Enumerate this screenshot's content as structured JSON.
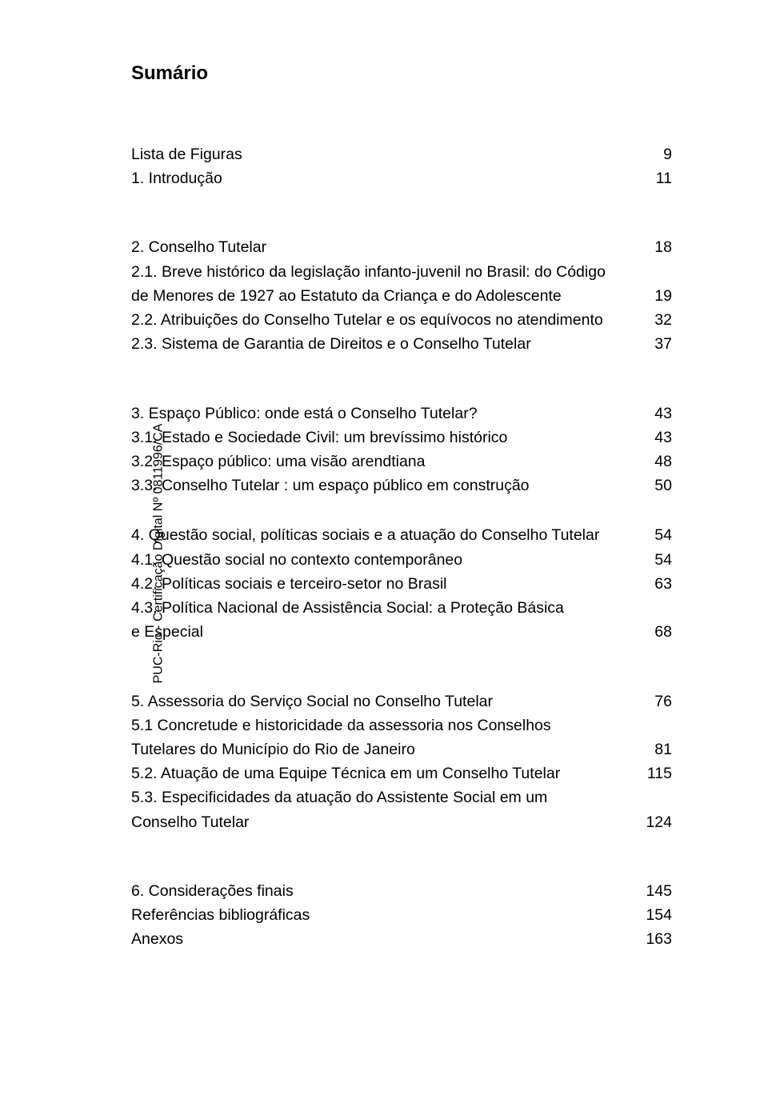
{
  "sidetext": "PUC-Rio - Certificação Digital Nº 0811996/CA",
  "title": "Sumário",
  "entries": [
    {
      "label": "Lista de Figuras",
      "page": "9"
    },
    {
      "label": "1. Introdução",
      "page": "11"
    },
    {
      "label": "2. Conselho Tutelar",
      "page": "18"
    },
    {
      "label": "2.1. Breve histórico da legislação infanto-juvenil no Brasil: do Código",
      "label2": "de Menores de 1927 ao Estatuto da Criança e do Adolescente",
      "page": "19"
    },
    {
      "label": "2.2. Atribuições do Conselho Tutelar e os equívocos no atendimento",
      "page": "32"
    },
    {
      "label": "2.3. Sistema de Garantia de Direitos e o Conselho Tutelar",
      "page": "37"
    },
    {
      "label": "3. Espaço Público: onde está o Conselho Tutelar?",
      "page": "43"
    },
    {
      "label": "3.1. Estado e Sociedade Civil: um brevíssimo histórico",
      "page": "43"
    },
    {
      "label": "3.2. Espaço público: uma visão arendtiana",
      "page": "48"
    },
    {
      "label": "3.3. Conselho Tutelar : um espaço público em construção",
      "page": "50"
    },
    {
      "label": "4. Questão social, políticas sociais e a atuação do Conselho Tutelar",
      "page": "54"
    },
    {
      "label": "4.1. Questão social no contexto contemporâneo",
      "page": "54"
    },
    {
      "label": "4.2. Políticas sociais e terceiro-setor no Brasil",
      "page": "63"
    },
    {
      "label": "4.3. Política Nacional de Assistência Social: a Proteção Básica",
      "label2": "e Especial",
      "page": "68"
    },
    {
      "label": "5. Assessoria do Serviço Social no Conselho Tutelar",
      "page": "76"
    },
    {
      "label": "5.1 Concretude e historicidade da assessoria nos Conselhos",
      "label2": "Tutelares do Município do Rio de Janeiro",
      "page": "81"
    },
    {
      "label": "5.2. Atuação de uma Equipe Técnica em um Conselho Tutelar",
      "page": "115"
    },
    {
      "label": "5.3. Especificidades da atuação do Assistente Social em um",
      "label2": "Conselho Tutelar",
      "page": "124"
    },
    {
      "label": "6. Considerações finais",
      "page": "145"
    },
    {
      "label": "Referências bibliográficas",
      "page": "154"
    },
    {
      "label": "Anexos",
      "page": "163"
    }
  ]
}
